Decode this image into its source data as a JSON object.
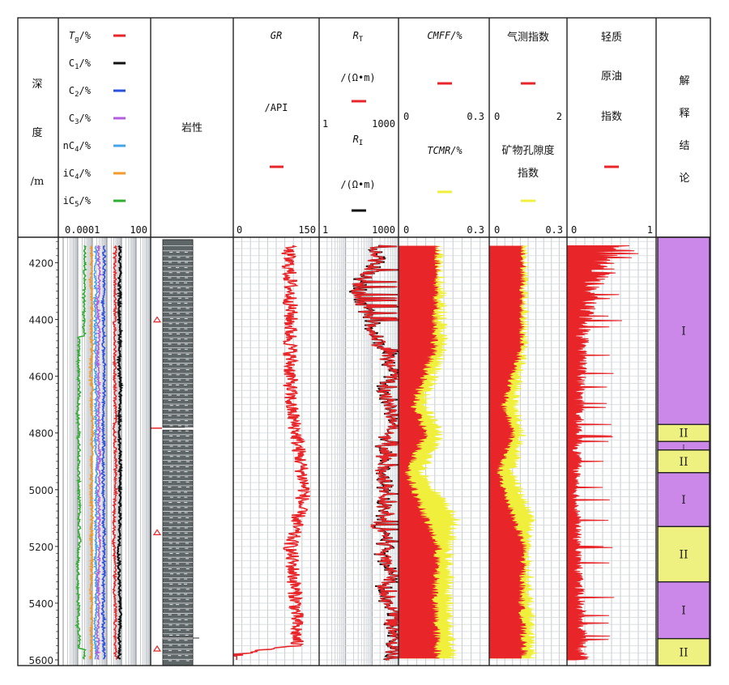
{
  "header": {
    "depth_label": [
      "深",
      "度",
      "/m"
    ],
    "gas_curves": [
      {
        "name": "Tg",
        "unit": "/%",
        "color": "#e8262a"
      },
      {
        "name": "C1",
        "unit": "/%",
        "color": "#111111"
      },
      {
        "name": "C2",
        "unit": "/%",
        "color": "#2b4fe0"
      },
      {
        "name": "C3",
        "unit": "/%",
        "color": "#b35ee0"
      },
      {
        "name": "nC4",
        "unit": "/%",
        "color": "#44a4e8"
      },
      {
        "name": "iC4",
        "unit": "/%",
        "color": "#f39a2b"
      },
      {
        "name": "iC5",
        "unit": "/%",
        "color": "#2fae2f"
      }
    ],
    "gas_scale": {
      "min": "0.0001",
      "max": "100"
    },
    "lithology": "岩性",
    "gr": {
      "name": "GR",
      "unit": "/API",
      "min": "0",
      "max": "150"
    },
    "rt": {
      "name": "R",
      "sub": "T",
      "unit": "/(Ω•m)",
      "min": "1",
      "max": "1000"
    },
    "ri": {
      "name": "R",
      "sub": "I",
      "unit": "/(Ω•m)",
      "min": "1",
      "max": "1000"
    },
    "cmff": {
      "name": "CMFF/%",
      "min": "0",
      "max": "0.3"
    },
    "tcmr": {
      "name": "TCMR/%",
      "min": "0",
      "max": "0.3"
    },
    "gas_index": {
      "name": "气测指数",
      "min": "0",
      "max": "2"
    },
    "porosity_index": {
      "name_line1": "矿物孔隙度",
      "name_line2": "指数",
      "min": "0",
      "max": "0.3"
    },
    "light_oil": {
      "name_line1": "轻质",
      "name_line2": "原油",
      "name_line3": "指数",
      "min": "0",
      "max": "1"
    },
    "interpretation": [
      "解",
      "释",
      "结",
      "论"
    ]
  },
  "colors": {
    "red": "#e8262a",
    "yellow": "#f0f03c",
    "purple": "#cc88e8",
    "lightyellow": "#eef080",
    "lith_fill": "#5f6668",
    "grid": "#9aa0a6",
    "gas_bg": "#c6c6c6"
  },
  "chart_data": {
    "type": "line",
    "depth_axis": {
      "label": "深度/m",
      "min": 4110,
      "max": 5620,
      "ticks": [
        4200,
        4400,
        4600,
        4800,
        5000,
        5200,
        5400,
        5600
      ]
    },
    "interpretation_zones": [
      {
        "top": 4110,
        "bottom": 4770,
        "label": "I",
        "class": "I"
      },
      {
        "top": 4770,
        "bottom": 4830,
        "label": "II",
        "class": "II"
      },
      {
        "top": 4830,
        "bottom": 4860,
        "label": "I",
        "class": "I"
      },
      {
        "top": 4860,
        "bottom": 4940,
        "label": "II",
        "class": "II"
      },
      {
        "top": 4940,
        "bottom": 5130,
        "label": "I",
        "class": "I"
      },
      {
        "top": 5130,
        "bottom": 5325,
        "label": "II",
        "class": "II"
      },
      {
        "top": 5325,
        "bottom": 5525,
        "label": "I",
        "class": "I"
      },
      {
        "top": 5525,
        "bottom": 5620,
        "label": "II",
        "class": "II"
      }
    ],
    "gr_profile": [
      [
        4140,
        95
      ],
      [
        4300,
        100
      ],
      [
        4500,
        100
      ],
      [
        4700,
        100
      ],
      [
        4800,
        110
      ],
      [
        5000,
        125
      ],
      [
        5200,
        100
      ],
      [
        5400,
        110
      ],
      [
        5550,
        110
      ],
      [
        5580,
        5
      ]
    ],
    "cmff_profile": [
      [
        4140,
        0.13
      ],
      [
        4500,
        0.12
      ],
      [
        4700,
        0.05
      ],
      [
        4800,
        0.09
      ],
      [
        4940,
        0.03
      ],
      [
        5100,
        0.09
      ],
      [
        5200,
        0.13
      ],
      [
        5400,
        0.12
      ],
      [
        5560,
        0.13
      ]
    ],
    "tcmr_profile": [
      [
        4140,
        0.14
      ],
      [
        4500,
        0.15
      ],
      [
        4700,
        0.09
      ],
      [
        4800,
        0.14
      ],
      [
        4940,
        0.08
      ],
      [
        5100,
        0.19
      ],
      [
        5200,
        0.17
      ],
      [
        5400,
        0.17
      ],
      [
        5560,
        0.18
      ]
    ],
    "porosity_profile": [
      [
        4140,
        0.14
      ],
      [
        4500,
        0.14
      ],
      [
        4700,
        0.1
      ],
      [
        4800,
        0.13
      ],
      [
        4940,
        0.09
      ],
      [
        5100,
        0.17
      ],
      [
        5200,
        0.15
      ],
      [
        5400,
        0.16
      ],
      [
        5560,
        0.17
      ]
    ],
    "light_oil_profile": [
      [
        4140,
        0.6
      ],
      [
        4300,
        0.3
      ],
      [
        4500,
        0.2
      ],
      [
        4800,
        0.15
      ],
      [
        5000,
        0.12
      ],
      [
        5300,
        0.15
      ],
      [
        5560,
        0.2
      ]
    ]
  }
}
